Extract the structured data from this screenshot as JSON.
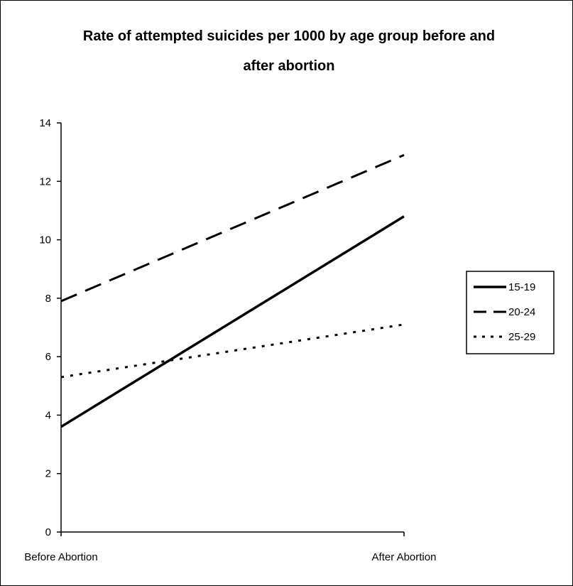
{
  "chart_data": {
    "type": "line",
    "title_lines": [
      "Rate of attempted suicides per 1000 by age group before and",
      "after abortion"
    ],
    "categories": [
      "Before Abortion",
      "After Abortion"
    ],
    "y_ticks": [
      "0",
      "2",
      "4",
      "6",
      "8",
      "10",
      "12",
      "14"
    ],
    "ylim": [
      0,
      14
    ],
    "grid": false,
    "legend_position": "right",
    "series": [
      {
        "name": "15-19",
        "values": [
          3.6,
          10.8
        ],
        "style": "solid",
        "color": "#000000"
      },
      {
        "name": "20-24",
        "values": [
          7.9,
          12.9
        ],
        "style": "dashed",
        "color": "#000000"
      },
      {
        "name": "25-29",
        "values": [
          5.3,
          7.1
        ],
        "style": "dotted",
        "color": "#000000"
      }
    ]
  }
}
